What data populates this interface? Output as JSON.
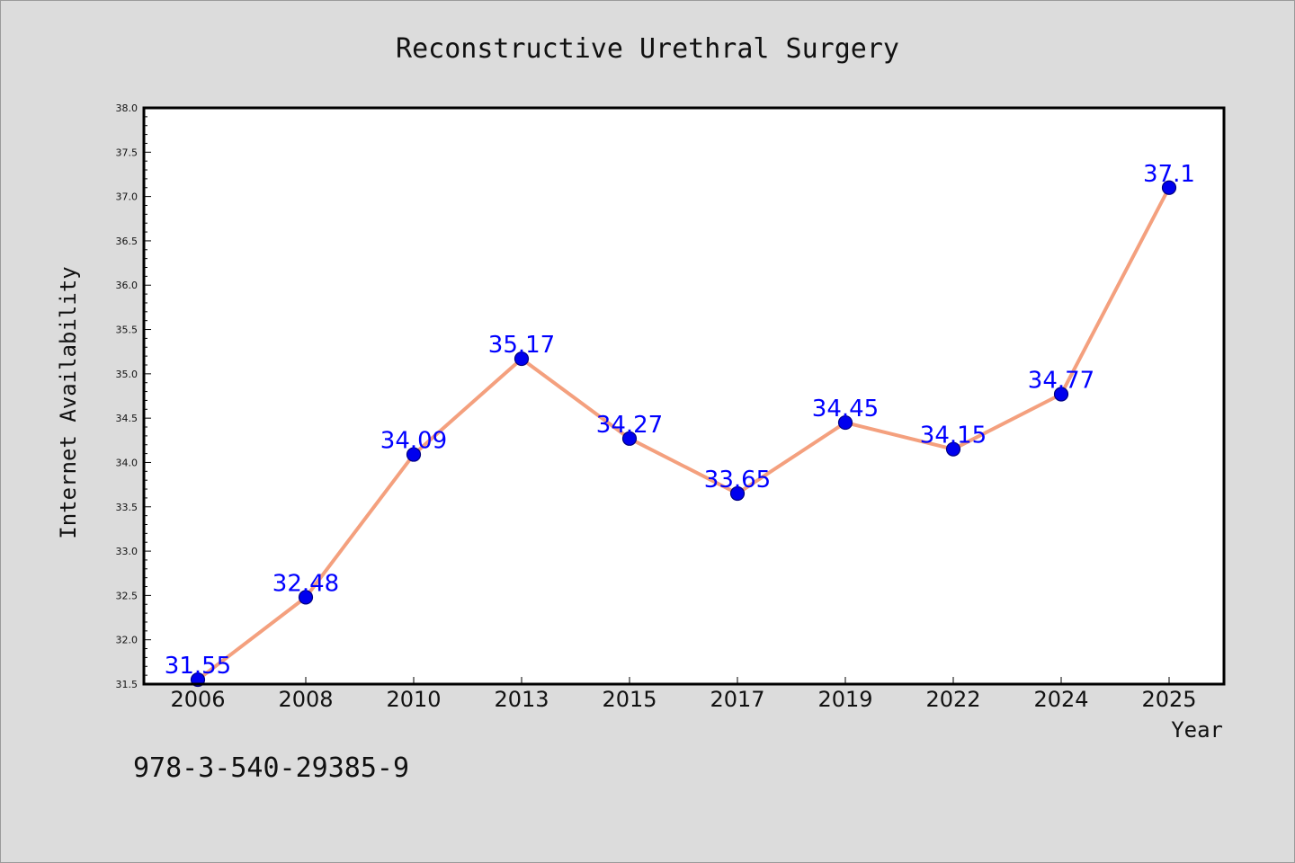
{
  "chart_data": {
    "type": "line",
    "title": "Reconstructive Urethral Surgery",
    "xlabel": "Year",
    "ylabel": "Internet Availability",
    "categories": [
      "2006",
      "2008",
      "2010",
      "2013",
      "2015",
      "2017",
      "2019",
      "2022",
      "2024",
      "2025"
    ],
    "series": [
      {
        "values": [
          31.55,
          32.48,
          34.09,
          35.17,
          34.27,
          33.65,
          34.45,
          34.15,
          34.77,
          37.1
        ]
      }
    ],
    "data_labels": [
      "31.55",
      "32.48",
      "34.09",
      "35.17",
      "34.27",
      "33.65",
      "34.45",
      "34.15",
      "34.77",
      "37.1"
    ],
    "ylim": [
      31.5,
      38.0
    ],
    "yticks": [
      "31.5",
      "32.0",
      "32.5",
      "33.0",
      "33.5",
      "34.0",
      "34.5",
      "35.0",
      "35.5",
      "36.0",
      "36.5",
      "37.0",
      "37.5",
      "38.0"
    ],
    "grid": false,
    "legend": "none",
    "colors": {
      "line": "#f4a07e",
      "marker": "#0000ee",
      "marker_edge": "#000080",
      "label": "#0000ff",
      "plot_bg": "#ffffff",
      "figure_bg": "#dcdcdc"
    }
  },
  "footnote": "978-3-540-29385-9"
}
